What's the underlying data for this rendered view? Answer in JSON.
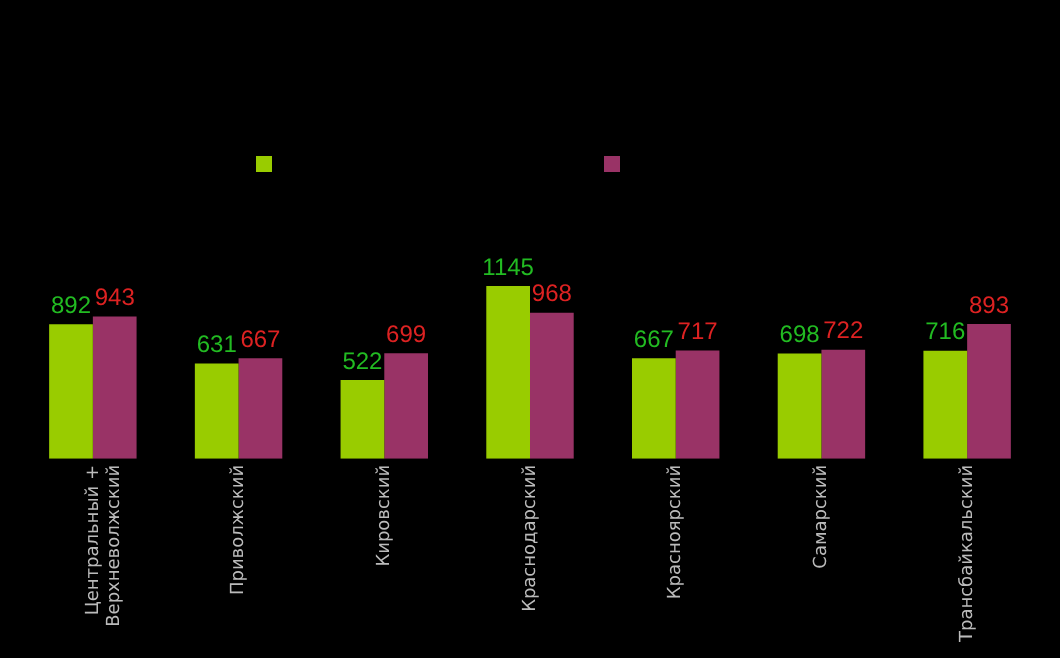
{
  "chart_data": {
    "type": "bar",
    "categories": [
      "Центральный +\nВерхневолжский",
      "Приволжский",
      "Кировский",
      "Краснодарский",
      "Красноярский",
      "Самарский",
      "Трансбайкальский"
    ],
    "series": [
      {
        "color": "#99cc00",
        "values": [
          892,
          631,
          522,
          1145,
          667,
          698,
          716
        ]
      },
      {
        "color": "#993366",
        "values": [
          943,
          667,
          699,
          968,
          717,
          722,
          893
        ]
      }
    ],
    "data_labels": true
  }
}
